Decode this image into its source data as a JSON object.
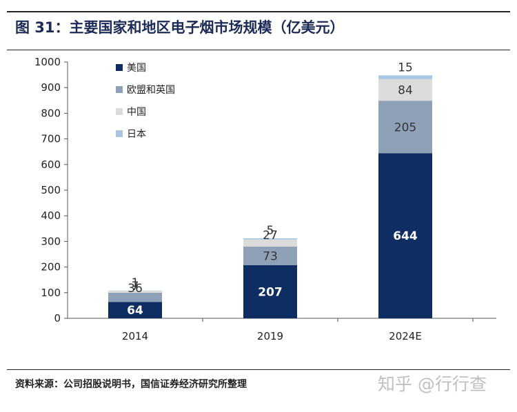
{
  "header": {
    "title": "图 31：主要国家和地区电子烟市场规模（亿美元）"
  },
  "footer": {
    "source": "资料来源：公司招股说明书，国信证券经济研究所整理",
    "watermark": "知乎 @行行查"
  },
  "colors": {
    "us": "#0d2d63",
    "eu_uk": "#8ea1b7",
    "china": "#dcdcdc",
    "japan": "#a9c6e3"
  },
  "chart_data": {
    "type": "bar",
    "stacked": true,
    "categories": [
      "2014",
      "2019",
      "2024E"
    ],
    "series": [
      {
        "name": "美国",
        "values": [
          64,
          207,
          644
        ],
        "color": "#0d2d63",
        "label_color": "#ffffff"
      },
      {
        "name": "欧盟和英国",
        "values": [
          36,
          73,
          205
        ],
        "color": "#8ea1b7",
        "label_color": "#333333"
      },
      {
        "name": "中国",
        "values": [
          7,
          27,
          84
        ],
        "color": "#dcdcdc",
        "label_color": "#333333"
      },
      {
        "name": "日本",
        "values": [
          1,
          5,
          15
        ],
        "color": "#a9c6e3",
        "label_color": "#333333"
      }
    ],
    "ylim": [
      0,
      1000
    ],
    "yticks": [
      "0",
      "100",
      "200",
      "300",
      "400",
      "500",
      "600",
      "700",
      "800",
      "900",
      "1000"
    ],
    "legend_position": "top-left",
    "grid": false
  }
}
